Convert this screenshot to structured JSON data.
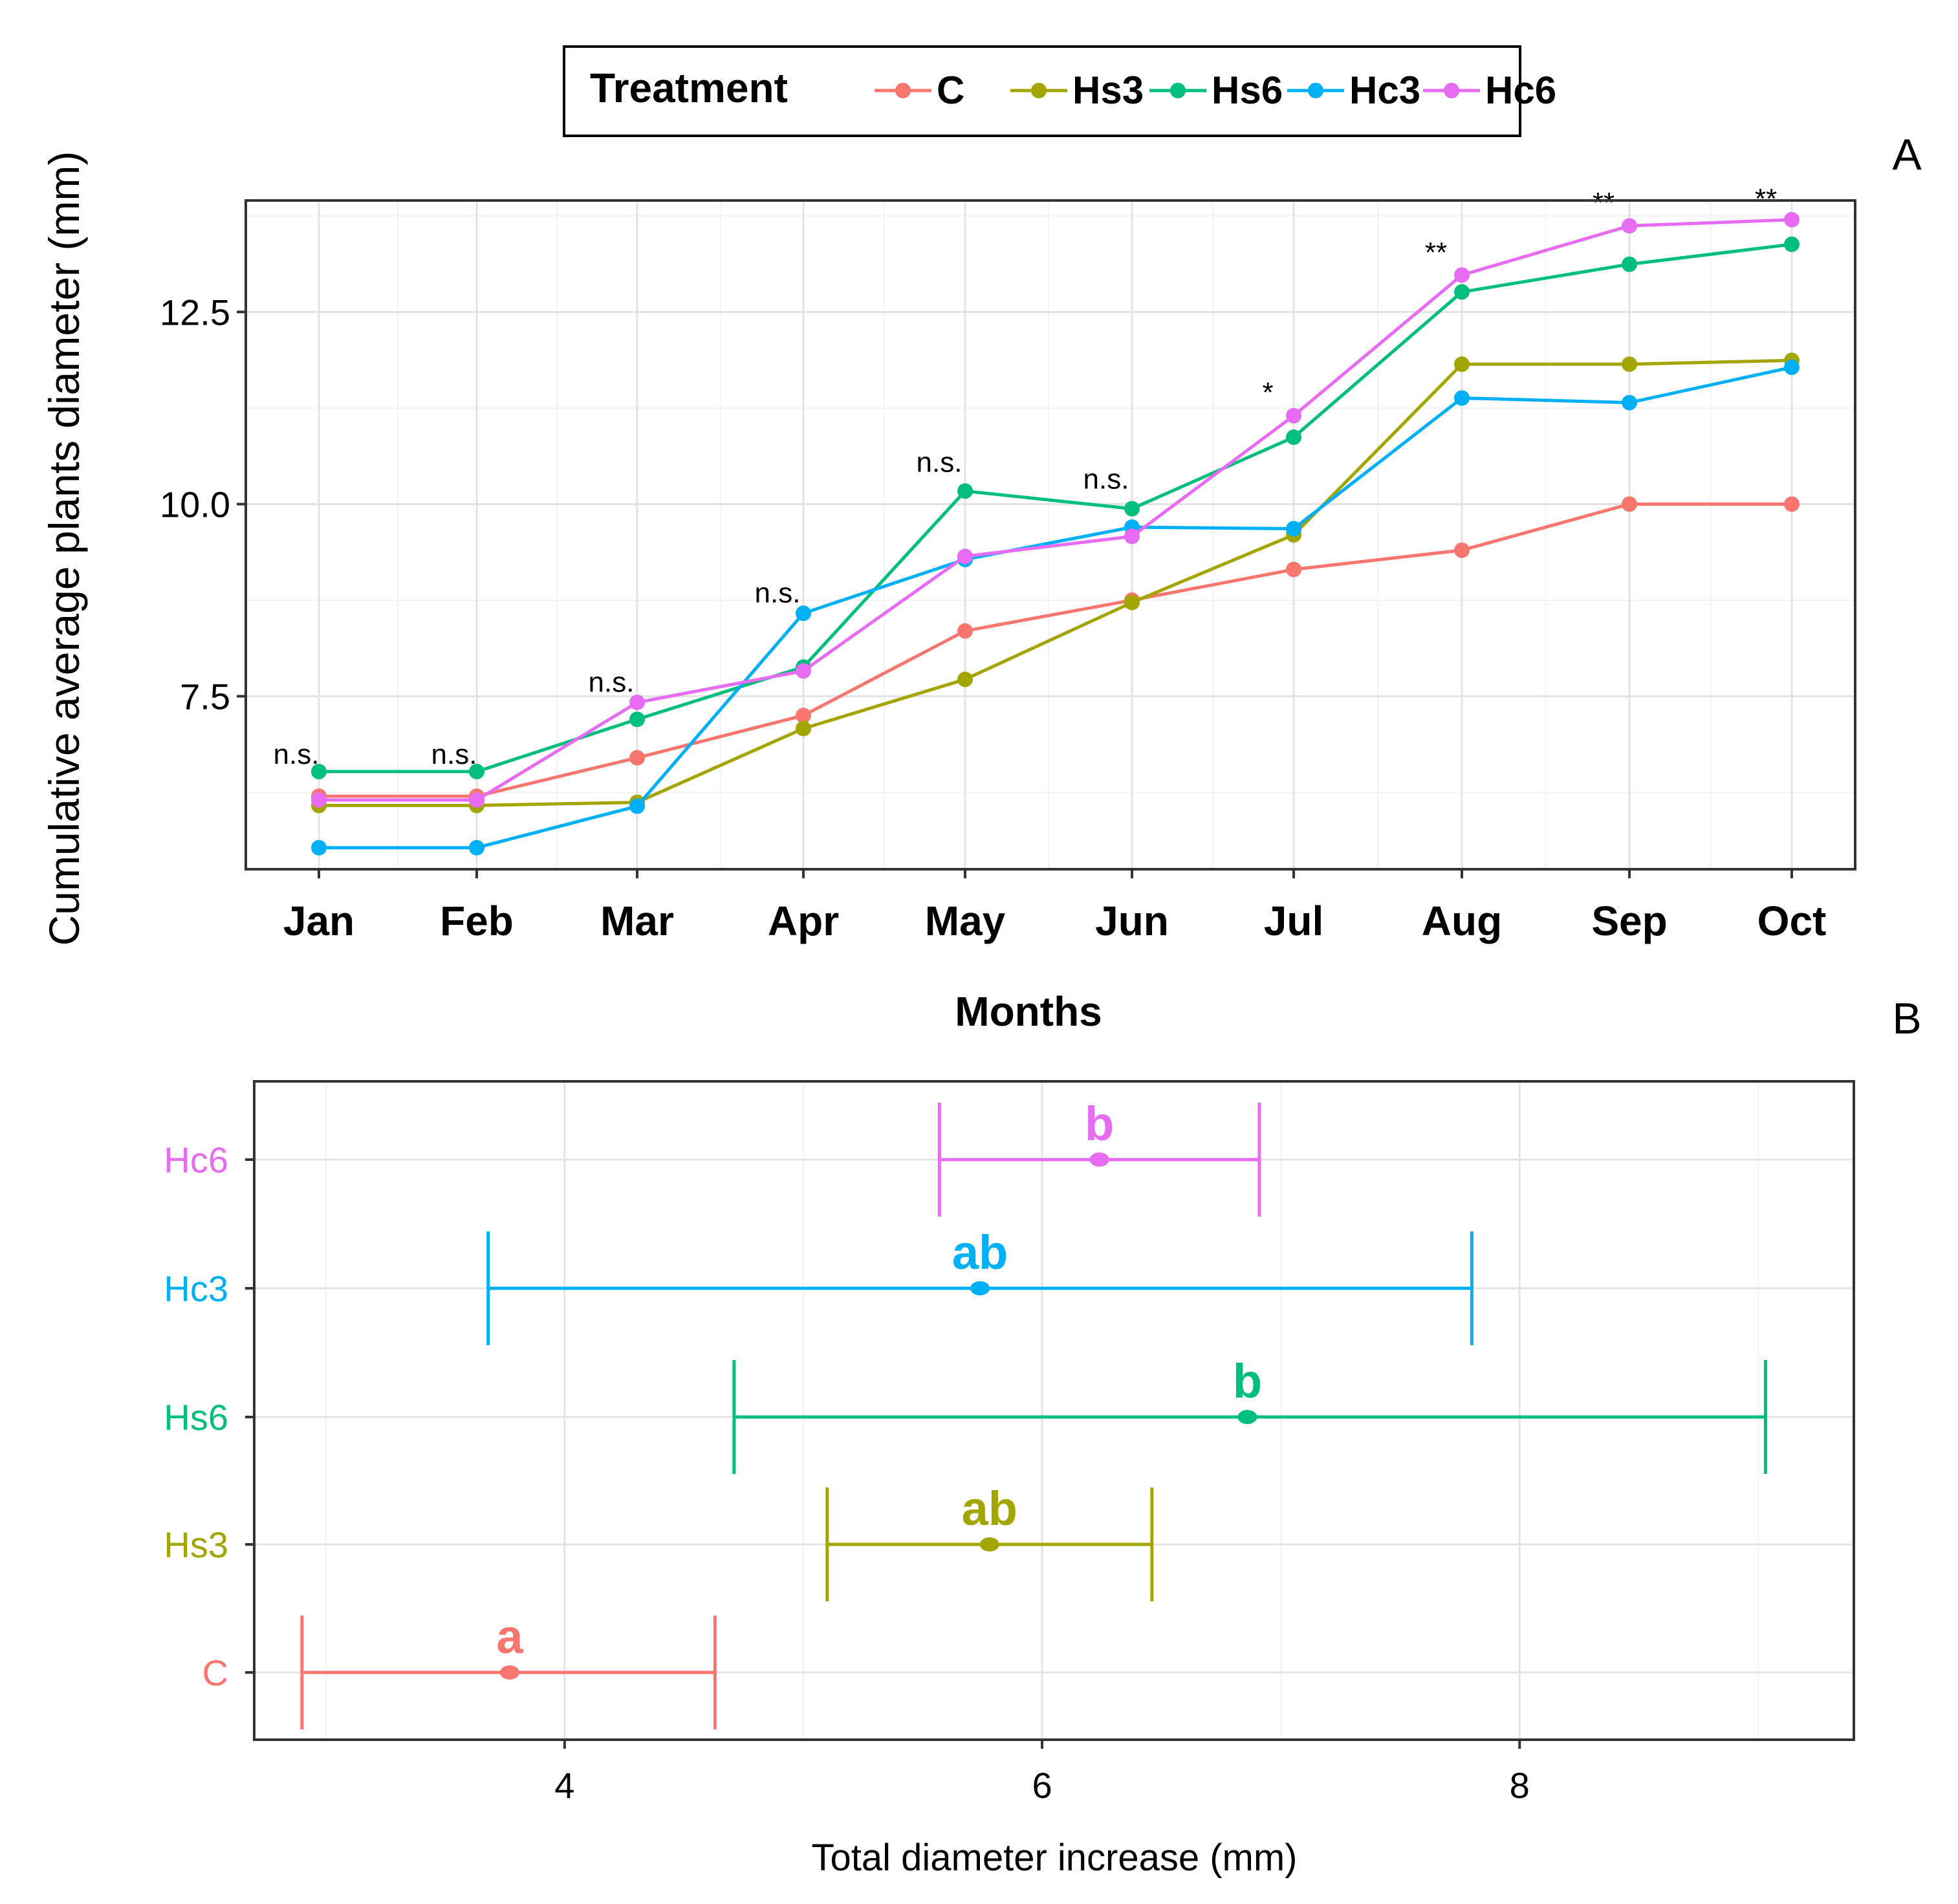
{
  "panel_labels": {
    "a": "A",
    "b": "B"
  },
  "legend": {
    "title": "Treatment"
  },
  "colors": {
    "C": "#F8766D",
    "Hs3": "#A3A500",
    "Hs6": "#00BF7D",
    "Hc3": "#00B0F6",
    "Hc6": "#E76BF3"
  },
  "chart_data": [
    {
      "type": "line",
      "panel": "A",
      "xlabel": "Months",
      "ylabel": "Cumulative average plants diameter (mm)",
      "categories": [
        "Jan",
        "Feb",
        "Mar",
        "Apr",
        "May",
        "Jun",
        "Jul",
        "Aug",
        "Sep",
        "Oct"
      ],
      "ylim": [
        5.25,
        13.95
      ],
      "yticks": [
        7.5,
        10.0,
        12.5
      ],
      "ytick_labels": [
        "7.5",
        "10.0",
        "12.5"
      ],
      "grid": true,
      "legend_position": "top",
      "series": [
        {
          "name": "C",
          "values": [
            6.2,
            6.2,
            6.7,
            7.25,
            8.35,
            8.75,
            9.15,
            9.4,
            10.0,
            10.0
          ]
        },
        {
          "name": "Hs3",
          "values": [
            6.08,
            6.08,
            6.12,
            7.08,
            7.72,
            8.72,
            9.6,
            11.82,
            11.82,
            11.87
          ]
        },
        {
          "name": "Hs6",
          "values": [
            6.52,
            6.52,
            7.2,
            7.88,
            10.17,
            9.94,
            10.87,
            12.76,
            13.12,
            13.38
          ]
        },
        {
          "name": "Hc3",
          "values": [
            5.53,
            5.53,
            6.07,
            8.58,
            9.28,
            9.7,
            9.68,
            11.38,
            11.32,
            11.78
          ]
        },
        {
          "name": "Hc6",
          "values": [
            6.15,
            6.15,
            7.42,
            7.83,
            9.32,
            9.58,
            11.15,
            12.98,
            13.62,
            13.7
          ]
        }
      ],
      "annotations": [
        "n.s.",
        "n.s.",
        "n.s.",
        "n.s.",
        "n.s.",
        "n.s.",
        "*",
        "**",
        "**",
        "**"
      ],
      "annotation_y": [
        6.62,
        6.62,
        7.56,
        8.72,
        10.42,
        10.2,
        11.33,
        13.15,
        13.8,
        13.85
      ]
    },
    {
      "type": "errorbar",
      "panel": "B",
      "xlabel": "Total diameter increase (mm)",
      "ylabel": "",
      "categories": [
        "C",
        "Hs3",
        "Hs6",
        "Hc3",
        "Hc6"
      ],
      "xlim": [
        2.7,
        9.4
      ],
      "xticks": [
        4,
        6,
        8
      ],
      "xtick_labels": [
        "4",
        "6",
        "8"
      ],
      "grid": true,
      "series": [
        {
          "name": "C",
          "mean": 3.77,
          "low": 2.9,
          "high": 4.63,
          "letter": "a"
        },
        {
          "name": "Hs3",
          "mean": 5.78,
          "low": 5.1,
          "high": 6.46,
          "letter": "ab"
        },
        {
          "name": "Hs6",
          "mean": 6.86,
          "low": 4.71,
          "high": 9.03,
          "letter": "b"
        },
        {
          "name": "Hc3",
          "mean": 5.74,
          "low": 3.68,
          "high": 7.8,
          "letter": "ab"
        },
        {
          "name": "Hc6",
          "mean": 6.24,
          "low": 5.57,
          "high": 6.91,
          "letter": "b"
        }
      ]
    }
  ]
}
